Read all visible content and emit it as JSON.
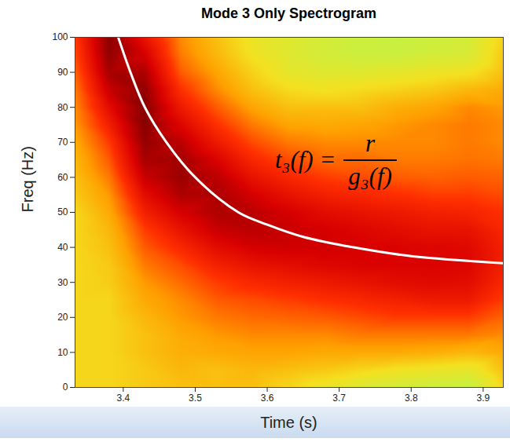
{
  "chart_data": {
    "type": "heatmap",
    "title": "Mode 3 Only Spectrogram",
    "xlabel": "Time (s)",
    "ylabel": "Freq (Hz)",
    "xlim": [
      3.333,
      3.928
    ],
    "xticks": [
      3.4,
      3.5,
      3.6,
      3.7,
      3.8,
      3.9
    ],
    "ylim": [
      0,
      100
    ],
    "yticks": [
      0,
      10,
      20,
      30,
      40,
      50,
      60,
      70,
      80,
      90,
      100
    ],
    "cells": {
      "x": [
        3.333,
        3.38,
        3.43,
        3.48,
        3.53,
        3.58,
        3.63,
        3.68,
        3.73,
        3.78,
        3.83,
        3.88,
        3.928
      ],
      "y": [
        0,
        5,
        10,
        15,
        20,
        25,
        30,
        35,
        40,
        45,
        50,
        55,
        60,
        65,
        70,
        75,
        80,
        85,
        90,
        95,
        100
      ],
      "values": [
        [
          0.45,
          0.45,
          0.45,
          0.45,
          0.45,
          0.45,
          0.45,
          0.45,
          0.45,
          0.45,
          0.45,
          0.48,
          0.5,
          0.52,
          0.55,
          0.58,
          0.6,
          0.62,
          0.65,
          0.68,
          0.7
        ],
        [
          0.45,
          0.45,
          0.45,
          0.45,
          0.45,
          0.45,
          0.47,
          0.48,
          0.5,
          0.52,
          0.55,
          0.58,
          0.62,
          0.66,
          0.7,
          0.76,
          0.82,
          0.88,
          0.93,
          0.96,
          0.97
        ],
        [
          0.48,
          0.48,
          0.5,
          0.5,
          0.52,
          0.55,
          0.58,
          0.62,
          0.66,
          0.7,
          0.76,
          0.82,
          0.88,
          0.93,
          0.96,
          0.98,
          0.98,
          0.96,
          0.92,
          0.86,
          0.8
        ],
        [
          0.5,
          0.52,
          0.54,
          0.55,
          0.58,
          0.6,
          0.64,
          0.68,
          0.74,
          0.8,
          0.86,
          0.92,
          0.95,
          0.94,
          0.9,
          0.84,
          0.78,
          0.72,
          0.66,
          0.62,
          0.6
        ],
        [
          0.5,
          0.5,
          0.55,
          0.58,
          0.62,
          0.66,
          0.7,
          0.76,
          0.82,
          0.88,
          0.92,
          0.92,
          0.9,
          0.85,
          0.78,
          0.72,
          0.66,
          0.6,
          0.56,
          0.52,
          0.5
        ],
        [
          0.5,
          0.52,
          0.56,
          0.6,
          0.64,
          0.68,
          0.74,
          0.8,
          0.86,
          0.9,
          0.9,
          0.86,
          0.8,
          0.74,
          0.68,
          0.62,
          0.56,
          0.5,
          0.46,
          0.42,
          0.4
        ],
        [
          0.45,
          0.5,
          0.56,
          0.6,
          0.65,
          0.7,
          0.76,
          0.82,
          0.87,
          0.88,
          0.86,
          0.8,
          0.74,
          0.68,
          0.62,
          0.56,
          0.5,
          0.44,
          0.38,
          0.36,
          0.36
        ],
        [
          0.4,
          0.48,
          0.55,
          0.6,
          0.66,
          0.72,
          0.78,
          0.84,
          0.87,
          0.86,
          0.82,
          0.76,
          0.7,
          0.64,
          0.6,
          0.55,
          0.5,
          0.42,
          0.36,
          0.32,
          0.32
        ],
        [
          0.35,
          0.45,
          0.55,
          0.62,
          0.68,
          0.74,
          0.8,
          0.85,
          0.86,
          0.84,
          0.8,
          0.74,
          0.68,
          0.64,
          0.6,
          0.56,
          0.5,
          0.44,
          0.36,
          0.3,
          0.3
        ],
        [
          0.32,
          0.42,
          0.55,
          0.62,
          0.7,
          0.76,
          0.82,
          0.85,
          0.85,
          0.82,
          0.78,
          0.72,
          0.66,
          0.62,
          0.6,
          0.58,
          0.54,
          0.46,
          0.38,
          0.3,
          0.28
        ],
        [
          0.3,
          0.4,
          0.54,
          0.62,
          0.7,
          0.78,
          0.83,
          0.85,
          0.84,
          0.8,
          0.76,
          0.7,
          0.65,
          0.62,
          0.6,
          0.6,
          0.56,
          0.48,
          0.4,
          0.32,
          0.3
        ],
        [
          0.28,
          0.38,
          0.52,
          0.62,
          0.7,
          0.78,
          0.82,
          0.84,
          0.83,
          0.8,
          0.75,
          0.7,
          0.66,
          0.63,
          0.62,
          0.62,
          0.6,
          0.52,
          0.42,
          0.34,
          0.32
        ],
        [
          0.45,
          0.5,
          0.55,
          0.6,
          0.65,
          0.7,
          0.74,
          0.76,
          0.76,
          0.74,
          0.72,
          0.68,
          0.65,
          0.62,
          0.6,
          0.6,
          0.58,
          0.55,
          0.5,
          0.48,
          0.46
        ]
      ],
      "zlim": [
        0,
        1
      ]
    },
    "curve": {
      "x": [
        3.393,
        3.41,
        3.43,
        3.46,
        3.5,
        3.56,
        3.6,
        3.65,
        3.72,
        3.8,
        3.928
      ],
      "y": [
        100,
        90,
        80,
        70,
        60,
        50,
        46.5,
        43,
        40,
        37.5,
        35.5
      ],
      "color": "#ffffff"
    },
    "annotation": {
      "left": "t₃(f) =",
      "numerator": "r",
      "denominator": "g₃(f)"
    }
  }
}
